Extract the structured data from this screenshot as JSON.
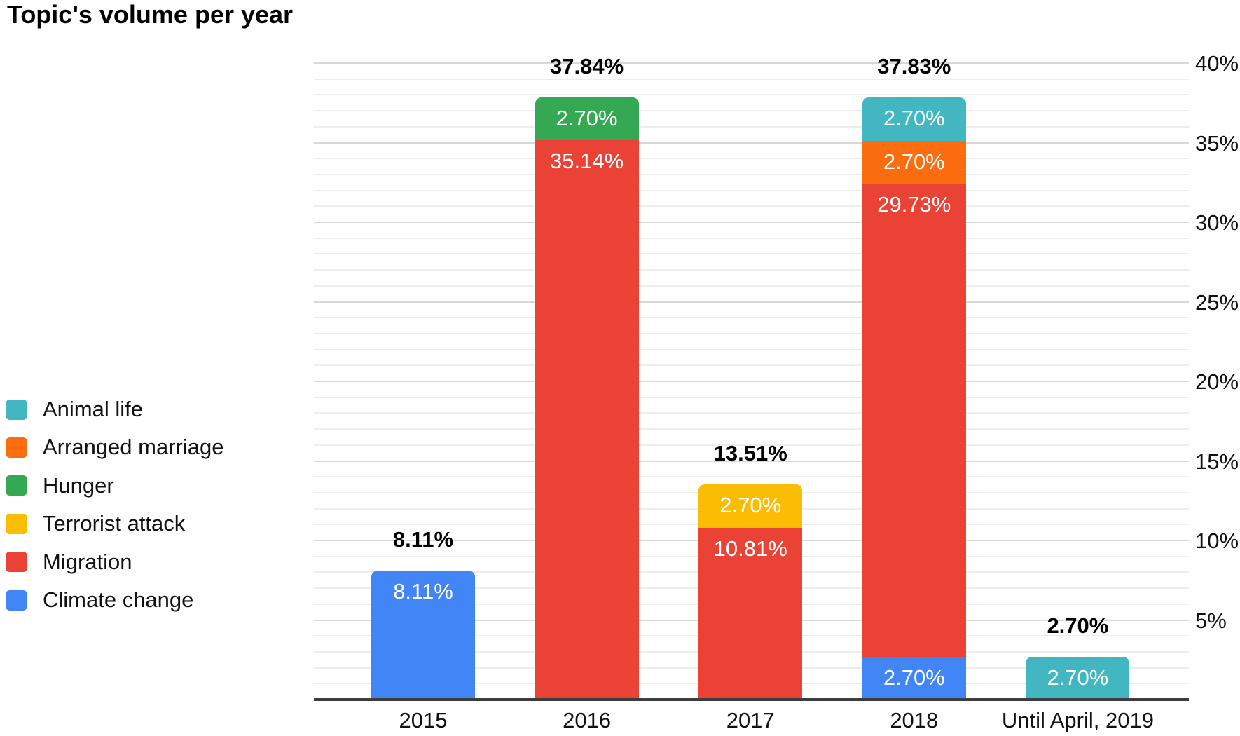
{
  "chart_data": {
    "type": "bar",
    "variant": "stacked",
    "title": "Topic's volume per year",
    "categories": [
      "2015",
      "2016",
      "2017",
      "2018",
      "Until April, 2019"
    ],
    "legend_position": "left",
    "grid": true,
    "series_colors": {
      "Animal life": "#42B7C2",
      "Arranged marriage": "#FB6D0E",
      "Hunger": "#34A853",
      "Terrorist attack": "#FBBC04",
      "Migration": "#EA4335",
      "Climate change": "#4285F4"
    },
    "legend": [
      {
        "name": "Animal life"
      },
      {
        "name": "Arranged marriage"
      },
      {
        "name": "Hunger"
      },
      {
        "name": "Terrorist attack"
      },
      {
        "name": "Migration"
      },
      {
        "name": "Climate change"
      }
    ],
    "stacks": [
      {
        "category": "2015",
        "total": 8.11,
        "total_label": "8.11%",
        "segments": [
          {
            "series": "Climate change",
            "value": 8.11,
            "label": "8.11%"
          }
        ]
      },
      {
        "category": "2016",
        "total": 37.84,
        "total_label": "37.84%",
        "segments": [
          {
            "series": "Migration",
            "value": 35.14,
            "label": "35.14%"
          },
          {
            "series": "Hunger",
            "value": 2.7,
            "label": "2.70%"
          }
        ]
      },
      {
        "category": "2017",
        "total": 13.51,
        "total_label": "13.51%",
        "segments": [
          {
            "series": "Migration",
            "value": 10.81,
            "label": "10.81%"
          },
          {
            "series": "Terrorist attack",
            "value": 2.7,
            "label": "2.70%"
          }
        ]
      },
      {
        "category": "2018",
        "total": 37.83,
        "total_label": "37.83%",
        "segments": [
          {
            "series": "Climate change",
            "value": 2.7,
            "label": "2.70%"
          },
          {
            "series": "Migration",
            "value": 29.73,
            "label": "29.73%"
          },
          {
            "series": "Arranged marriage",
            "value": 2.7,
            "label": "2.70%"
          },
          {
            "series": "Animal life",
            "value": 2.7,
            "label": "2.70%"
          }
        ]
      },
      {
        "category": "Until April, 2019",
        "total": 2.7,
        "total_label": "2.70%",
        "segments": [
          {
            "series": "Animal life",
            "value": 2.7,
            "label": "2.70%"
          }
        ]
      }
    ],
    "y_axis": {
      "position": "right",
      "min": 0,
      "max": 40,
      "major_step": 5,
      "minor_step": 1,
      "tick_labels": [
        "5%",
        "10%",
        "15%",
        "20%",
        "25%",
        "30%",
        "35%",
        "40%"
      ],
      "tick_suffix": "%"
    }
  }
}
